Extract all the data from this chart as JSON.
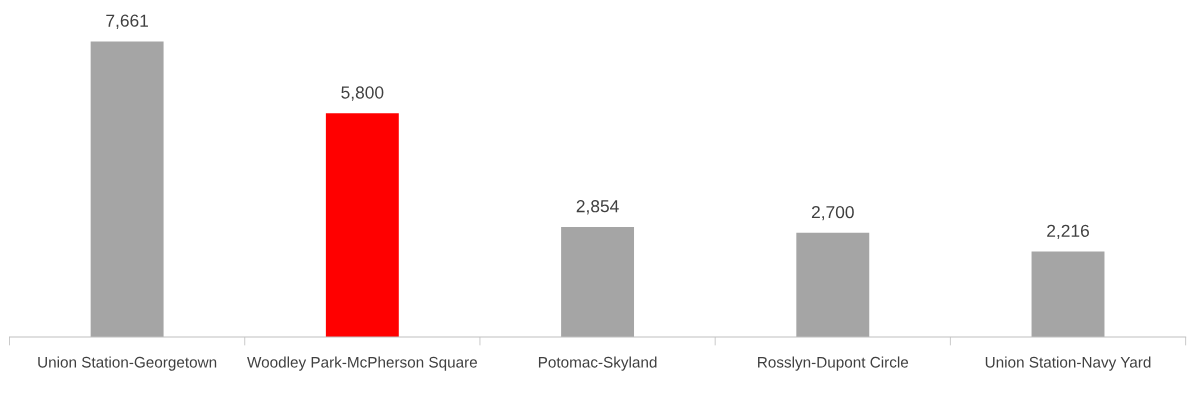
{
  "chart_data": {
    "type": "bar",
    "categories": [
      "Union Station-Georgetown",
      "Woodley Park-McPherson Square",
      "Potomac-Skyland",
      "Rosslyn-Dupont Circle",
      "Union Station-Navy Yard"
    ],
    "values": [
      7661,
      5800,
      2854,
      2700,
      2216
    ],
    "colors": [
      "#a5a5a5",
      "#ff0000",
      "#a5a5a5",
      "#a5a5a5",
      "#a5a5a5"
    ],
    "value_labels": [
      "7,661",
      "5,800",
      "2,854",
      "2,700",
      "2,216"
    ],
    "grid": false,
    "legend": false
  }
}
